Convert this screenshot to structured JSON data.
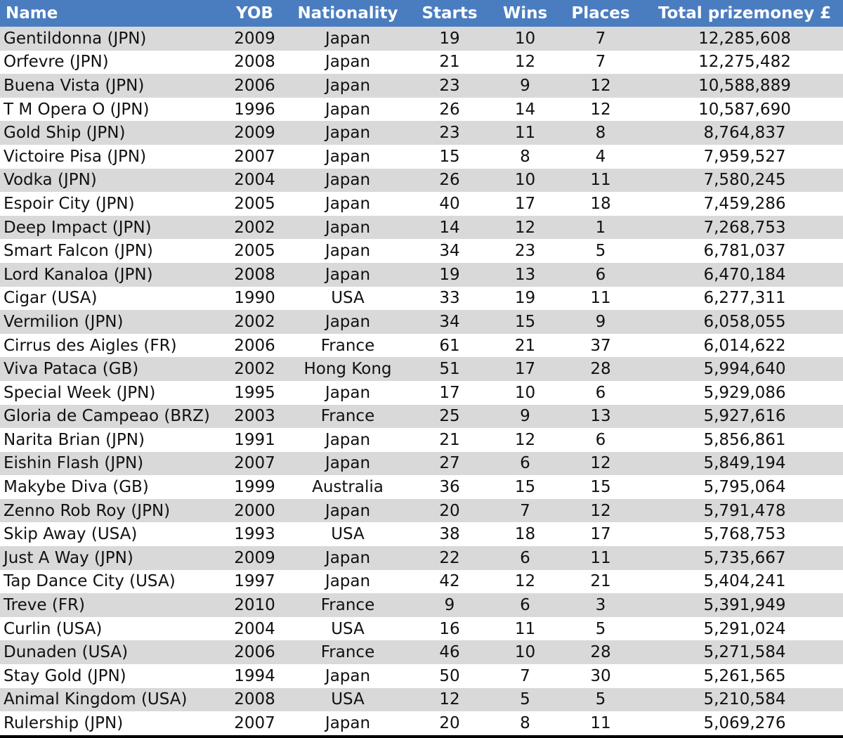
{
  "table": {
    "header": [
      "Name",
      "YOB",
      "Nationality",
      "Starts",
      "Wins",
      "Places",
      "Total prizemoney £"
    ],
    "rows": [
      [
        "Gentildonna (JPN)",
        "2009",
        "Japan",
        "19",
        "10",
        "7",
        "12,285,608"
      ],
      [
        "Orfevre (JPN)",
        "2008",
        "Japan",
        "21",
        "12",
        "7",
        "12,275,482"
      ],
      [
        "Buena Vista (JPN)",
        "2006",
        "Japan",
        "23",
        "9",
        "12",
        "10,588,889"
      ],
      [
        "T M Opera O (JPN)",
        "1996",
        "Japan",
        "26",
        "14",
        "12",
        "10,587,690"
      ],
      [
        "Gold Ship (JPN)",
        "2009",
        "Japan",
        "23",
        "11",
        "8",
        "8,764,837"
      ],
      [
        "Victoire Pisa (JPN)",
        "2007",
        "Japan",
        "15",
        "8",
        "4",
        "7,959,527"
      ],
      [
        "Vodka (JPN)",
        "2004",
        "Japan",
        "26",
        "10",
        "11",
        "7,580,245"
      ],
      [
        "Espoir City (JPN)",
        "2005",
        "Japan",
        "40",
        "17",
        "18",
        "7,459,286"
      ],
      [
        "Deep Impact (JPN)",
        "2002",
        "Japan",
        "14",
        "12",
        "1",
        "7,268,753"
      ],
      [
        "Smart Falcon (JPN)",
        "2005",
        "Japan",
        "34",
        "23",
        "5",
        "6,781,037"
      ],
      [
        "Lord Kanaloa (JPN)",
        "2008",
        "Japan",
        "19",
        "13",
        "6",
        "6,470,184"
      ],
      [
        "Cigar (USA)",
        "1990",
        "USA",
        "33",
        "19",
        "11",
        "6,277,311"
      ],
      [
        "Vermilion (JPN)",
        "2002",
        "Japan",
        "34",
        "15",
        "9",
        "6,058,055"
      ],
      [
        "Cirrus des Aigles (FR)",
        "2006",
        "France",
        "61",
        "21",
        "37",
        "6,014,622"
      ],
      [
        "Viva Pataca (GB)",
        "2002",
        "Hong Kong",
        "51",
        "17",
        "28",
        "5,994,640"
      ],
      [
        "Special Week (JPN)",
        "1995",
        "Japan",
        "17",
        "10",
        "6",
        "5,929,086"
      ],
      [
        "Gloria de Campeao (BRZ)",
        "2003",
        "France",
        "25",
        "9",
        "13",
        "5,927,616"
      ],
      [
        "Narita Brian (JPN)",
        "1991",
        "Japan",
        "21",
        "12",
        "6",
        "5,856,861"
      ],
      [
        "Eishin Flash (JPN)",
        "2007",
        "Japan",
        "27",
        "6",
        "12",
        "5,849,194"
      ],
      [
        "Makybe Diva (GB)",
        "1999",
        "Australia",
        "36",
        "15",
        "15",
        "5,795,064"
      ],
      [
        "Zenno Rob Roy (JPN)",
        "2000",
        "Japan",
        "20",
        "7",
        "12",
        "5,791,478"
      ],
      [
        "Skip Away (USA)",
        "1993",
        "USA",
        "38",
        "18",
        "17",
        "5,768,753"
      ],
      [
        "Just A Way (JPN)",
        "2009",
        "Japan",
        "22",
        "6",
        "11",
        "5,735,667"
      ],
      [
        "Tap Dance City (USA)",
        "1997",
        "Japan",
        "42",
        "12",
        "21",
        "5,404,241"
      ],
      [
        "Treve (FR)",
        "2010",
        "France",
        "9",
        "6",
        "3",
        "5,391,949"
      ],
      [
        "Curlin (USA)",
        "2004",
        "USA",
        "16",
        "11",
        "5",
        "5,291,024"
      ],
      [
        "Dunaden (USA)",
        "2006",
        "France",
        "46",
        "10",
        "28",
        "5,271,584"
      ],
      [
        "Stay Gold (JPN)",
        "1994",
        "Japan",
        "50",
        "7",
        "30",
        "5,261,565"
      ],
      [
        "Animal Kingdom (USA)",
        "2008",
        "USA",
        "12",
        "5",
        "5",
        "5,210,584"
      ],
      [
        "Rulership (JPN)",
        "2007",
        "Japan",
        "20",
        "8",
        "11",
        "5,069,276"
      ]
    ]
  }
}
